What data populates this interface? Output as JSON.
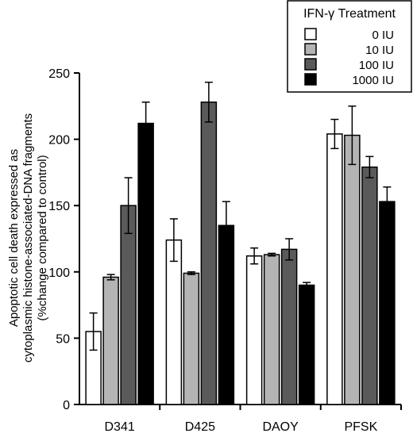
{
  "chart_data": {
    "type": "bar",
    "categories": [
      "D341",
      "D425",
      "DAOY",
      "PFSK"
    ],
    "ylabel_lines": [
      "Apoptotic cell death expressed as",
      "cytoplasmic histone-associated-DNA fragments",
      "(%change compared to control)"
    ],
    "ylim": [
      0,
      250
    ],
    "yticks": [
      "0",
      "50",
      "100",
      "150",
      "200",
      "250"
    ],
    "legend_title": "IFN-γ Treatment",
    "legend_position": "top-right",
    "series": [
      {
        "name": "0 IU",
        "color": "#ffffff",
        "values": [
          55,
          124,
          112,
          204
        ],
        "errors": [
          14,
          16,
          6,
          11
        ]
      },
      {
        "name": "10 IU",
        "color": "#b4b4b4",
        "values": [
          96,
          99,
          113,
          203
        ],
        "errors": [
          2,
          1,
          1,
          22
        ]
      },
      {
        "name": "100 IU",
        "color": "#5a5a5a",
        "values": [
          150,
          228,
          117,
          179
        ],
        "errors": [
          21,
          15,
          8,
          8
        ]
      },
      {
        "name": "1000 IU",
        "color": "#000000",
        "values": [
          212,
          135,
          90,
          153
        ],
        "errors": [
          16,
          18,
          2,
          11
        ]
      }
    ]
  }
}
